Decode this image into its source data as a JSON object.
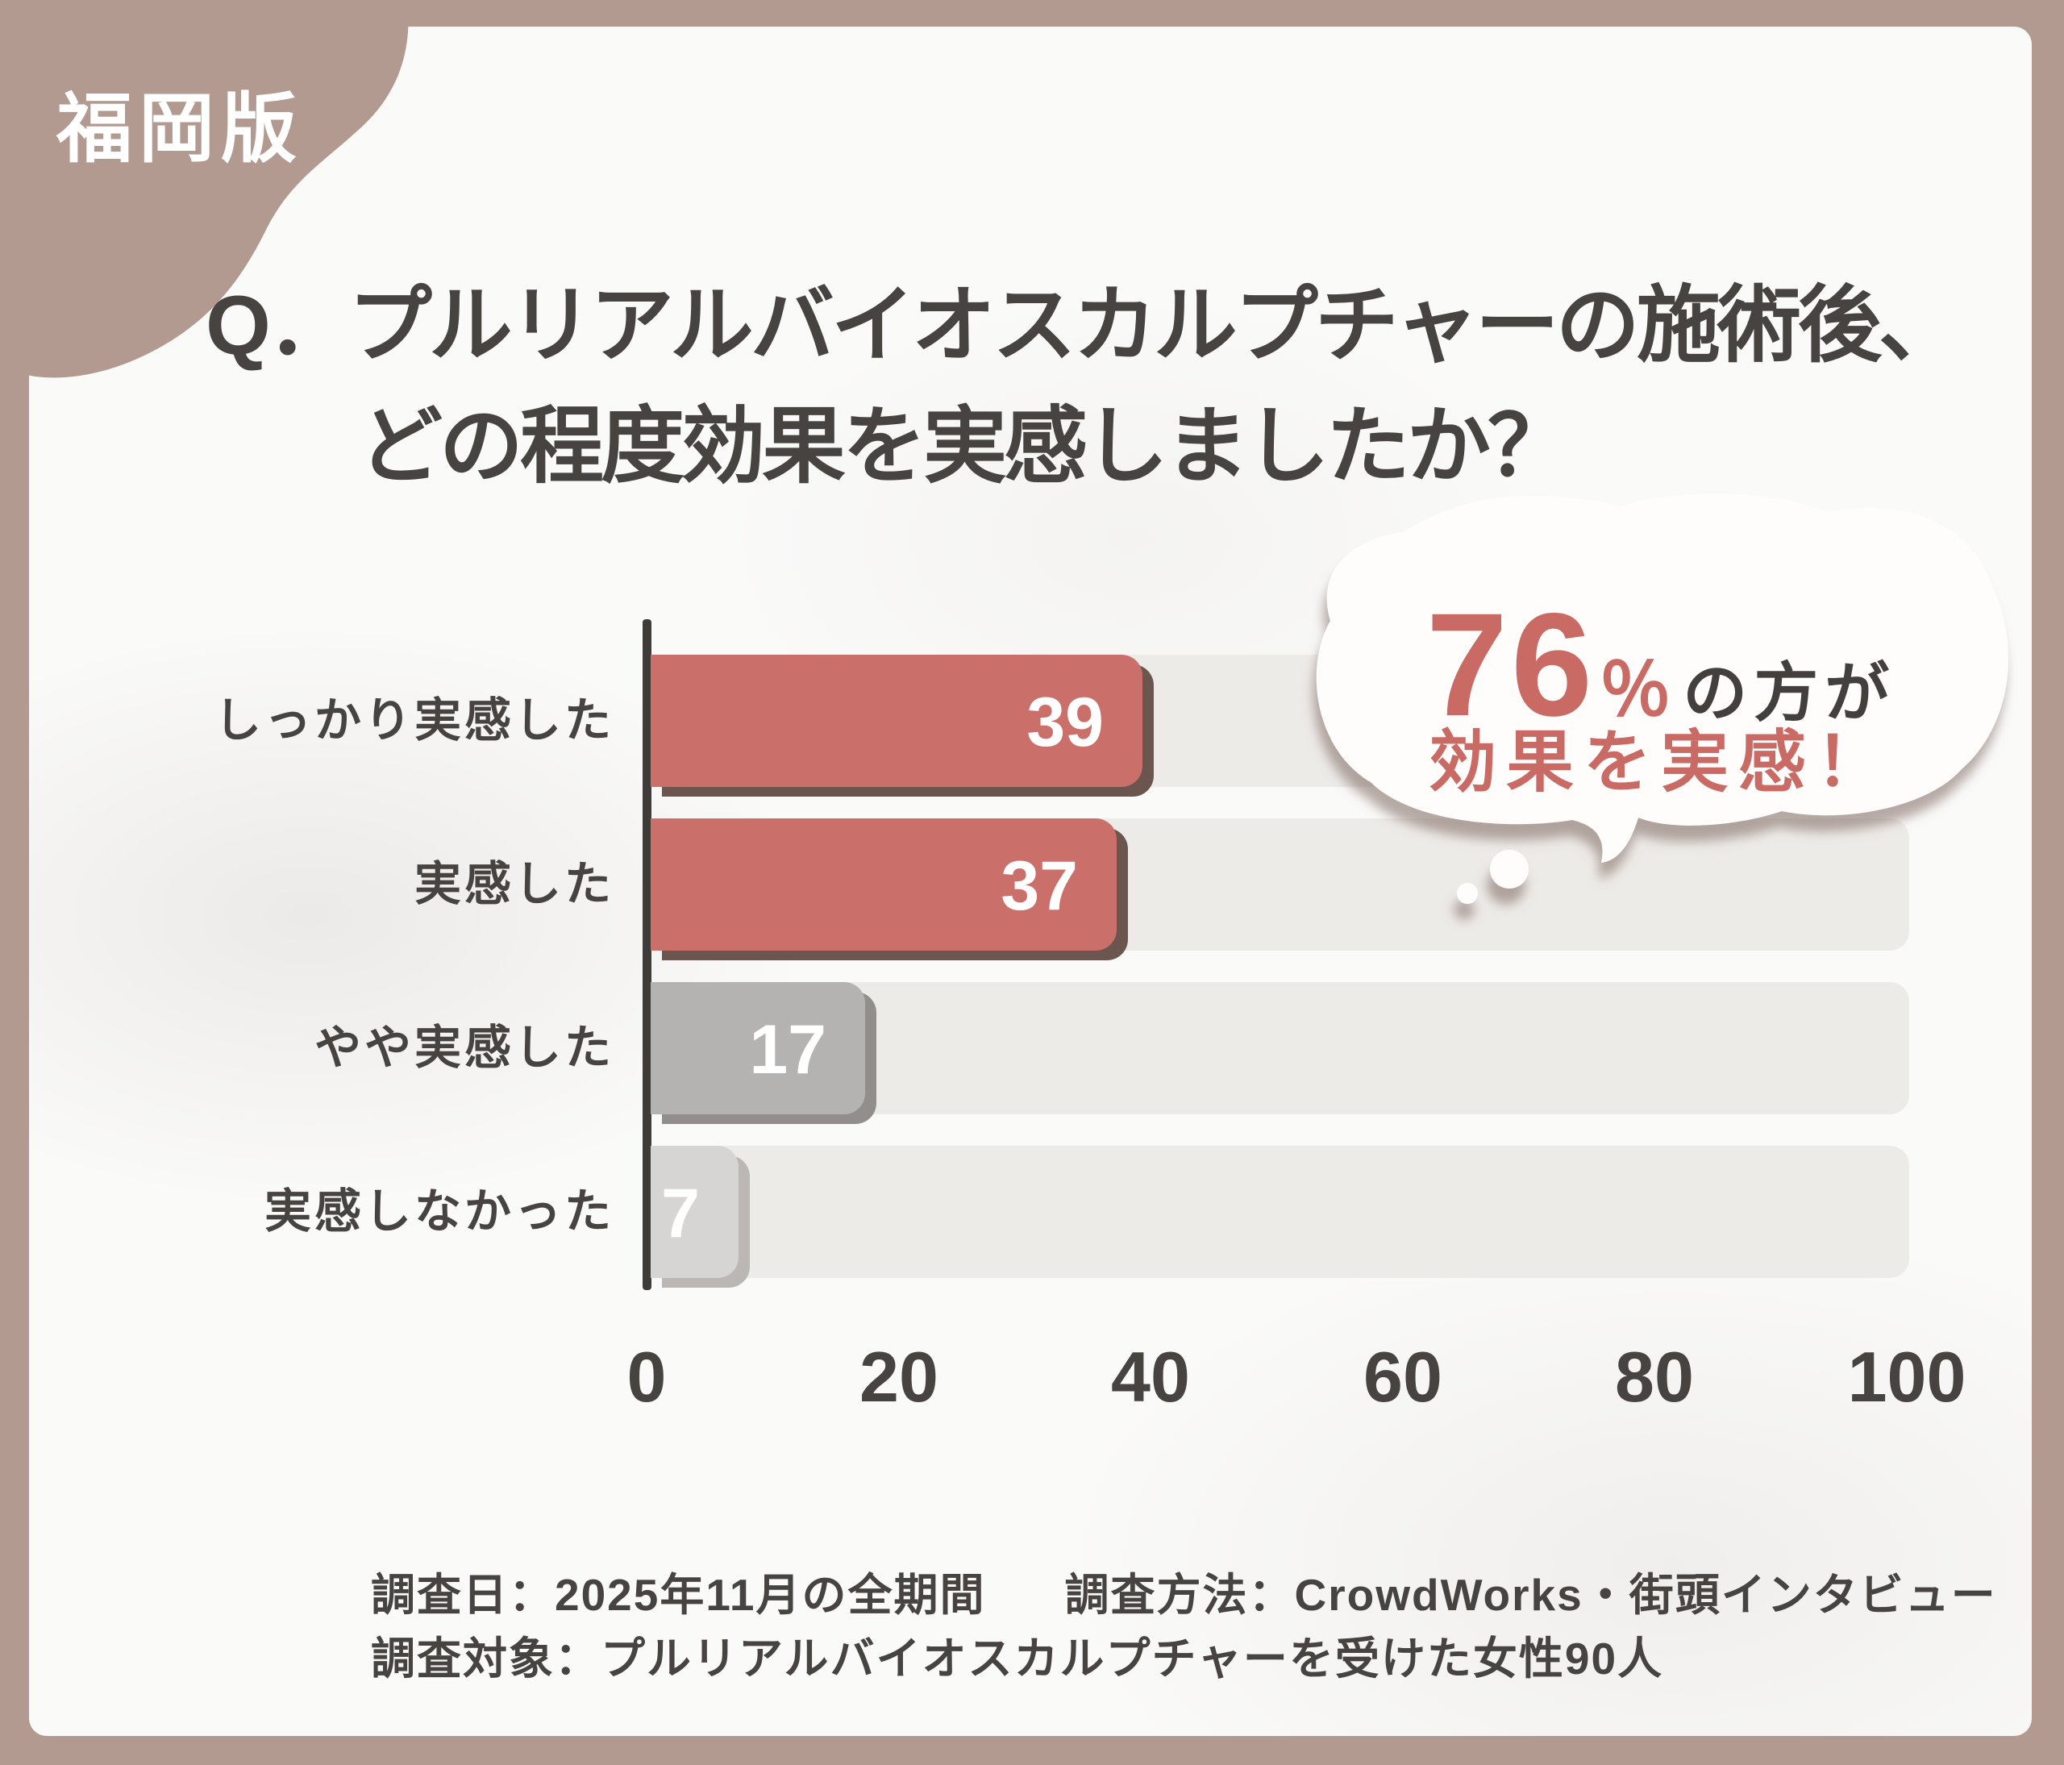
{
  "badge": {
    "label": "福岡版"
  },
  "title": {
    "line1": "Q．プルリアルバイオスカルプチャーの施術後、",
    "line2": "どの程度効果を実感しましたか？"
  },
  "callout": {
    "percent": "76",
    "percent_sign": "％",
    "suffix": "の方が",
    "subline": "効果を実感！",
    "accent_color": "#c96b64",
    "dark_color": "#433f3d"
  },
  "chart_data": {
    "type": "bar",
    "orientation": "horizontal",
    "title": "プルリアルバイオスカルプチャーの施術後、どの程度効果を実感しましたか？",
    "categories": [
      "しっかり実感した",
      "実感した",
      "やや実感した",
      "実感しなかった"
    ],
    "values": [
      39,
      37,
      17,
      7
    ],
    "value_labels_position": "inside-end",
    "bar_colors": [
      "#ca6f69",
      "#ca6f69",
      "#b5b3b1",
      "#d7d5d3"
    ],
    "bar_shadow_colors": [
      "#6a564f",
      "#6a564f",
      "#918e8c",
      "#bab7b5"
    ],
    "track_color": "#edebe8",
    "axis_color": "#3f3b39",
    "x_ticks": [
      0,
      20,
      40,
      60,
      80,
      100
    ],
    "xlim": [
      0,
      100
    ],
    "grid": false,
    "legend": null,
    "highlight": {
      "value_percent": 76,
      "text": "76％の方が効果を実感！"
    }
  },
  "footer": {
    "survey_date": "調査日：2025年11月の全期間",
    "survey_method": "調査方法：CrowdWorks・街頭インタビュー",
    "survey_target": "調査対象：プルリアルバイオスカルプチャーを受けた女性90人"
  },
  "colors": {
    "frame": "#b39a91",
    "panel": "#fafaf9",
    "text_dark": "#474341",
    "badge_text": "#ffffff",
    "bubble_fill": "#fffdfc",
    "bubble_shadow": "#7e685e"
  }
}
